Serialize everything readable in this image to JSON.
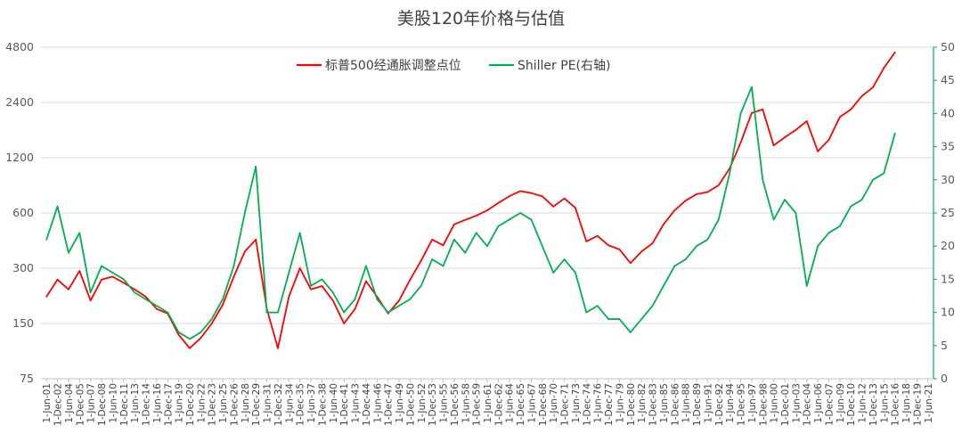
{
  "chart_data": {
    "type": "line",
    "title": "美股120年价格与估值",
    "left_axis": {
      "scale": "log2",
      "ticks": [
        75,
        150,
        300,
        600,
        1200,
        2400,
        4800
      ],
      "range": [
        75,
        4800
      ]
    },
    "right_axis": {
      "ticks": [
        0,
        5,
        10,
        15,
        20,
        25,
        30,
        35,
        40,
        45,
        50
      ],
      "range": [
        0,
        50
      ]
    },
    "x": [
      "1-Jun-01",
      "1-Dec-02",
      "1-Jun-04",
      "1-Dec-05",
      "1-Jun-07",
      "1-Dec-08",
      "1-Jun-10",
      "1-Dec-11",
      "1-Jun-13",
      "1-Dec-14",
      "1-Jun-16",
      "1-Dec-17",
      "1-Jun-19",
      "1-Dec-20",
      "1-Jun-22",
      "1-Dec-23",
      "1-Jun-25",
      "1-Dec-26",
      "1-Jun-28",
      "1-Dec-29",
      "1-Jun-31",
      "1-Dec-32",
      "1-Jun-34",
      "1-Dec-35",
      "1-Jun-37",
      "1-Dec-38",
      "1-Jun-40",
      "1-Dec-41",
      "1-Jun-43",
      "1-Dec-44",
      "1-Jun-46",
      "1-Dec-47",
      "1-Jun-49",
      "1-Dec-50",
      "1-Jun-52",
      "1-Dec-53",
      "1-Jun-55",
      "1-Dec-56",
      "1-Jun-58",
      "1-Dec-59",
      "1-Jun-61",
      "1-Dec-62",
      "1-Jun-64",
      "1-Dec-65",
      "1-Jun-67",
      "1-Dec-68",
      "1-Jun-70",
      "1-Dec-71",
      "1-Jun-73",
      "1-Dec-74",
      "1-Jun-76",
      "1-Dec-77",
      "1-Jun-79",
      "1-Dec-80",
      "1-Jun-82",
      "1-Dec-83",
      "1-Jun-85",
      "1-Dec-86",
      "1-Jun-88",
      "1-Dec-89",
      "1-Jun-91",
      "1-Dec-92",
      "1-Jun-94",
      "1-Dec-95",
      "1-Jun-97",
      "1-Dec-98",
      "1-Jun-00",
      "1-Dec-01",
      "1-Jun-03",
      "1-Dec-04",
      "1-Jun-06",
      "1-Dec-07",
      "1-Jun-09",
      "1-Dec-10",
      "1-Jun-12",
      "1-Dec-13",
      "1-Jun-15",
      "1-Dec-16",
      "1-Jun-18",
      "1-Dec-19",
      "1-Jun-21"
    ],
    "series": [
      {
        "name": "标普500经通胀调整点位",
        "color": "#ff0000",
        "axis": "left",
        "points": [
          [
            0,
            210
          ],
          [
            1,
            260
          ],
          [
            2,
            230
          ],
          [
            3,
            290
          ],
          [
            4,
            200
          ],
          [
            5,
            260
          ],
          [
            6,
            270
          ],
          [
            7,
            250
          ],
          [
            8,
            230
          ],
          [
            9,
            210
          ],
          [
            10,
            180
          ],
          [
            11,
            170
          ],
          [
            12,
            130
          ],
          [
            13,
            110
          ],
          [
            14,
            125
          ],
          [
            15,
            150
          ],
          [
            16,
            190
          ],
          [
            17,
            270
          ],
          [
            18,
            370
          ],
          [
            19,
            430
          ],
          [
            20,
            180
          ],
          [
            21,
            110
          ],
          [
            22,
            210
          ],
          [
            23,
            300
          ],
          [
            24,
            230
          ],
          [
            25,
            240
          ],
          [
            26,
            200
          ],
          [
            27,
            150
          ],
          [
            28,
            180
          ],
          [
            29,
            255
          ],
          [
            30,
            210
          ],
          [
            31,
            170
          ],
          [
            32,
            200
          ],
          [
            33,
            260
          ],
          [
            34,
            330
          ],
          [
            35,
            430
          ],
          [
            36,
            400
          ],
          [
            37,
            520
          ],
          [
            38,
            550
          ],
          [
            39,
            580
          ],
          [
            40,
            620
          ],
          [
            41,
            680
          ],
          [
            42,
            740
          ],
          [
            43,
            790
          ],
          [
            44,
            770
          ],
          [
            45,
            740
          ],
          [
            46,
            650
          ],
          [
            47,
            720
          ],
          [
            48,
            640
          ],
          [
            49,
            420
          ],
          [
            50,
            450
          ],
          [
            51,
            400
          ],
          [
            52,
            380
          ],
          [
            53,
            320
          ],
          [
            54,
            370
          ],
          [
            55,
            410
          ],
          [
            56,
            520
          ],
          [
            57,
            620
          ],
          [
            58,
            700
          ],
          [
            59,
            760
          ],
          [
            60,
            780
          ],
          [
            61,
            850
          ],
          [
            62,
            1050
          ],
          [
            63,
            1450
          ],
          [
            64,
            2100
          ],
          [
            65,
            2200
          ],
          [
            66,
            1400
          ],
          [
            67,
            1550
          ],
          [
            68,
            1700
          ],
          [
            69,
            1900
          ],
          [
            70,
            1300
          ],
          [
            71,
            1500
          ],
          [
            72,
            2000
          ],
          [
            73,
            2200
          ],
          [
            74,
            2600
          ],
          [
            75,
            2900
          ],
          [
            76,
            3700
          ],
          [
            77,
            4500
          ]
        ]
      },
      {
        "name": "Shiller PE(右轴)",
        "color": "#00b050",
        "axis": "right",
        "points": [
          [
            0,
            21
          ],
          [
            1,
            26
          ],
          [
            2,
            19
          ],
          [
            3,
            22
          ],
          [
            4,
            13
          ],
          [
            5,
            17
          ],
          [
            6,
            16
          ],
          [
            7,
            15
          ],
          [
            8,
            13
          ],
          [
            9,
            12
          ],
          [
            10,
            11
          ],
          [
            11,
            10
          ],
          [
            12,
            7
          ],
          [
            13,
            6
          ],
          [
            14,
            7
          ],
          [
            15,
            9
          ],
          [
            16,
            12
          ],
          [
            17,
            17
          ],
          [
            18,
            25
          ],
          [
            19,
            32
          ],
          [
            20,
            10
          ],
          [
            21,
            10
          ],
          [
            22,
            16
          ],
          [
            23,
            22
          ],
          [
            24,
            14
          ],
          [
            25,
            15
          ],
          [
            26,
            13
          ],
          [
            27,
            10
          ],
          [
            28,
            12
          ],
          [
            29,
            17
          ],
          [
            30,
            12
          ],
          [
            31,
            10
          ],
          [
            32,
            11
          ],
          [
            33,
            12
          ],
          [
            34,
            14
          ],
          [
            35,
            18
          ],
          [
            36,
            17
          ],
          [
            37,
            21
          ],
          [
            38,
            19
          ],
          [
            39,
            22
          ],
          [
            40,
            20
          ],
          [
            41,
            23
          ],
          [
            42,
            24
          ],
          [
            43,
            25
          ],
          [
            44,
            24
          ],
          [
            45,
            20
          ],
          [
            46,
            16
          ],
          [
            47,
            18
          ],
          [
            48,
            16
          ],
          [
            49,
            10
          ],
          [
            50,
            11
          ],
          [
            51,
            9
          ],
          [
            52,
            9
          ],
          [
            53,
            7
          ],
          [
            54,
            9
          ],
          [
            55,
            11
          ],
          [
            56,
            14
          ],
          [
            57,
            17
          ],
          [
            58,
            18
          ],
          [
            59,
            20
          ],
          [
            60,
            21
          ],
          [
            61,
            24
          ],
          [
            62,
            31
          ],
          [
            63,
            40
          ],
          [
            64,
            44
          ],
          [
            65,
            30
          ],
          [
            66,
            24
          ],
          [
            67,
            27
          ],
          [
            68,
            25
          ],
          [
            69,
            14
          ],
          [
            70,
            20
          ],
          [
            71,
            22
          ],
          [
            72,
            23
          ],
          [
            73,
            26
          ],
          [
            74,
            27
          ],
          [
            75,
            30
          ],
          [
            76,
            31
          ],
          [
            77,
            37
          ]
        ]
      }
    ],
    "legend": {
      "placement": "top"
    },
    "grid": "horizontal"
  }
}
